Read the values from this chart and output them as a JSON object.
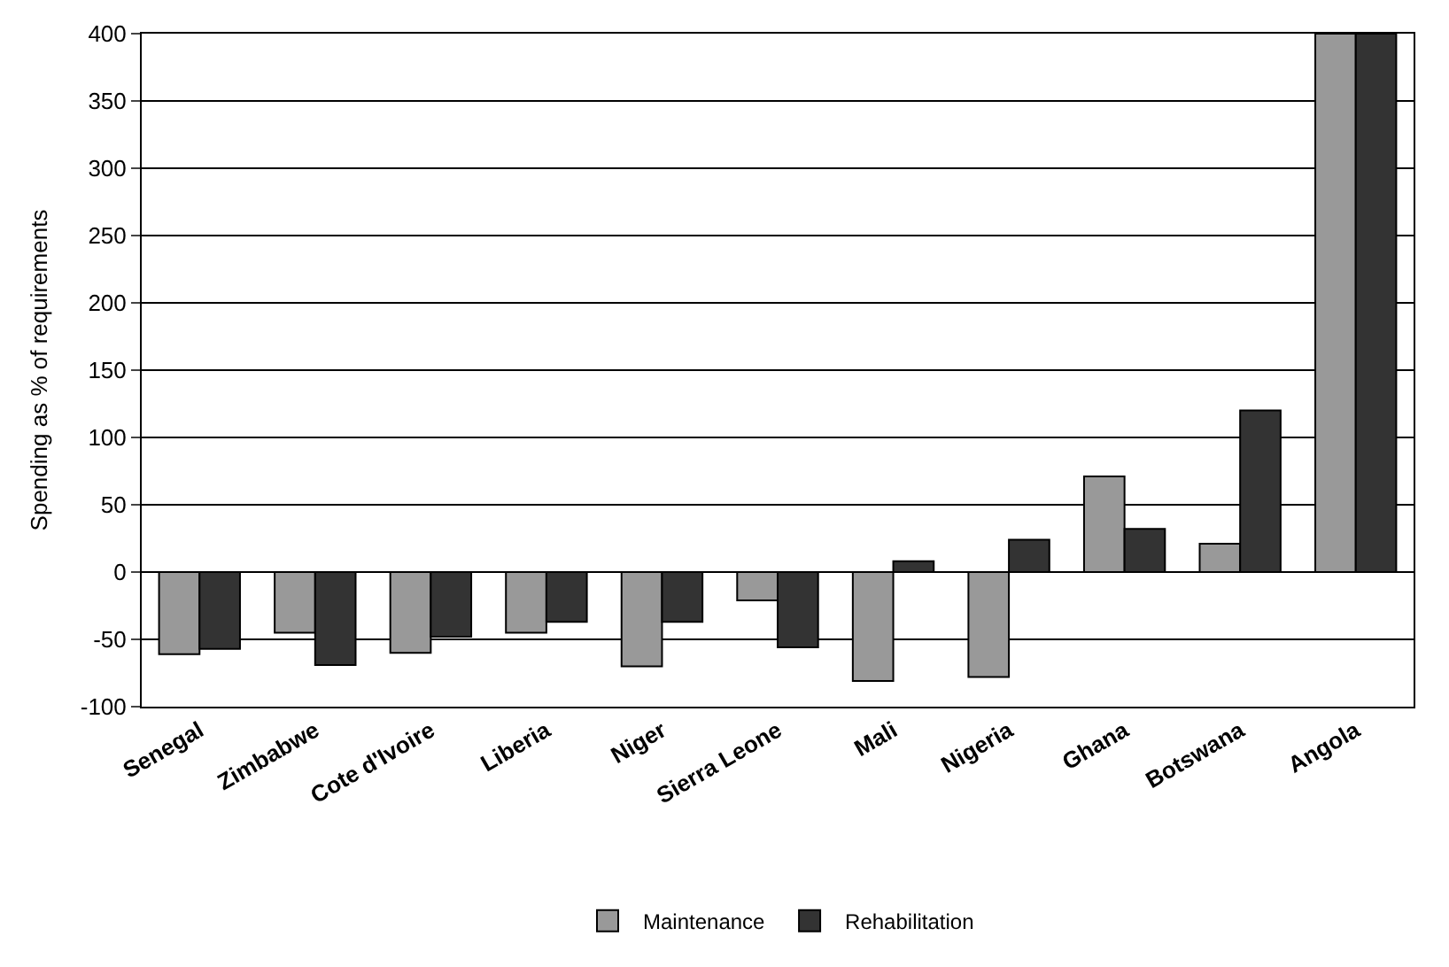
{
  "chart_data": {
    "type": "bar",
    "ylabel": "Spending as % of requirements",
    "categories": [
      "Senegal",
      "Zimbabwe",
      "Cote d'Ivoire",
      "Liberia",
      "Niger",
      "Sierra Leone",
      "Mali",
      "Nigeria",
      "Ghana",
      "Botswana",
      "Angola"
    ],
    "series": [
      {
        "name": "Maintenance",
        "color": "#999999",
        "values": [
          -61,
          -45,
          -60,
          -45,
          -70,
          -21,
          -81,
          -78,
          71,
          21,
          400
        ]
      },
      {
        "name": "Rehabilitation",
        "color": "#333333",
        "values": [
          -57,
          -69,
          -48,
          -37,
          -37,
          -56,
          8,
          24,
          32,
          120,
          400
        ]
      }
    ],
    "ylim": [
      -100,
      400
    ],
    "yticks": [
      -100,
      -50,
      0,
      50,
      100,
      150,
      200,
      250,
      300,
      350,
      400
    ],
    "grid": "y",
    "legend": "bottom"
  }
}
